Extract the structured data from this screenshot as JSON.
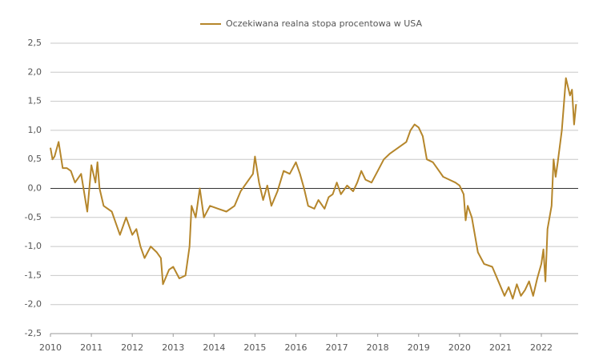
{
  "chart_data": {
    "type": "line",
    "x": [
      2010.0,
      2010.05,
      2010.1,
      2010.2,
      2010.3,
      2010.4,
      2010.5,
      2010.6,
      2010.75,
      2010.9,
      2011.0,
      2011.1,
      2011.15,
      2011.2,
      2011.3,
      2011.5,
      2011.6,
      2011.7,
      2011.85,
      2012.0,
      2012.1,
      2012.2,
      2012.3,
      2012.45,
      2012.6,
      2012.7,
      2012.75,
      2012.9,
      2013.0,
      2013.15,
      2013.3,
      2013.4,
      2013.45,
      2013.55,
      2013.65,
      2013.75,
      2013.9,
      2014.1,
      2014.3,
      2014.5,
      2014.65,
      2014.8,
      2014.95,
      2015.0,
      2015.1,
      2015.2,
      2015.3,
      2015.4,
      2015.55,
      2015.7,
      2015.85,
      2016.0,
      2016.1,
      2016.2,
      2016.3,
      2016.45,
      2016.55,
      2016.7,
      2016.8,
      2016.9,
      2017.0,
      2017.1,
      2017.25,
      2017.4,
      2017.5,
      2017.6,
      2017.7,
      2017.85,
      2018.0,
      2018.15,
      2018.3,
      2018.5,
      2018.7,
      2018.8,
      2018.9,
      2019.0,
      2019.1,
      2019.2,
      2019.35,
      2019.5,
      2019.6,
      2019.75,
      2019.9,
      2020.0,
      2020.1,
      2020.15,
      2020.2,
      2020.3,
      2020.45,
      2020.6,
      2020.8,
      2020.95,
      2021.1,
      2021.2,
      2021.3,
      2021.4,
      2021.5,
      2021.6,
      2021.7,
      2021.8,
      2021.9,
      2022.0,
      2022.05,
      2022.1,
      2022.15,
      2022.25,
      2022.3,
      2022.35,
      2022.4,
      2022.5,
      2022.6,
      2022.7,
      2022.75,
      2022.8,
      2022.85
    ],
    "series": [
      {
        "name": "Oczekiwana realna stopa procentowa w USA",
        "color": "#b5862b",
        "values": [
          0.7,
          0.5,
          0.55,
          0.8,
          0.35,
          0.35,
          0.3,
          0.1,
          0.25,
          -0.4,
          0.4,
          0.1,
          0.45,
          0.0,
          -0.3,
          -0.4,
          -0.6,
          -0.8,
          -0.5,
          -0.8,
          -0.7,
          -1.0,
          -1.2,
          -1.0,
          -1.1,
          -1.2,
          -1.65,
          -1.4,
          -1.35,
          -1.55,
          -1.5,
          -1.0,
          -0.3,
          -0.5,
          0.0,
          -0.5,
          -0.3,
          -0.35,
          -0.4,
          -0.3,
          -0.05,
          0.1,
          0.25,
          0.55,
          0.1,
          -0.2,
          0.05,
          -0.3,
          -0.05,
          0.3,
          0.25,
          0.45,
          0.25,
          0.0,
          -0.3,
          -0.35,
          -0.2,
          -0.35,
          -0.15,
          -0.1,
          0.1,
          -0.1,
          0.05,
          -0.05,
          0.1,
          0.3,
          0.15,
          0.1,
          0.3,
          0.5,
          0.6,
          0.7,
          0.8,
          1.0,
          1.1,
          1.05,
          0.9,
          0.5,
          0.45,
          0.3,
          0.2,
          0.15,
          0.1,
          0.05,
          -0.1,
          -0.55,
          -0.3,
          -0.5,
          -1.1,
          -1.3,
          -1.35,
          -1.6,
          -1.85,
          -1.7,
          -1.9,
          -1.65,
          -1.85,
          -1.75,
          -1.6,
          -1.85,
          -1.55,
          -1.3,
          -1.05,
          -1.6,
          -0.7,
          -0.3,
          0.5,
          0.2,
          0.45,
          1.0,
          1.9,
          1.6,
          1.7,
          1.1,
          1.45
        ]
      }
    ],
    "xlim": [
      2010,
      2022.9
    ],
    "xticks": [
      2010,
      2011,
      2012,
      2013,
      2014,
      2015,
      2016,
      2017,
      2018,
      2019,
      2020,
      2021,
      2022
    ],
    "ylim": [
      -2.5,
      2.5
    ],
    "yticks": [
      {
        "value": -2.5,
        "label": "-2,5"
      },
      {
        "value": -2.0,
        "label": "-2,0"
      },
      {
        "value": -1.5,
        "label": "-1,5"
      },
      {
        "value": -1.0,
        "label": "-1,0"
      },
      {
        "value": -0.5,
        "label": "-0,5"
      },
      {
        "value": 0,
        "label": "0,0"
      },
      {
        "value": 0.5,
        "label": "0,5"
      },
      {
        "value": 1.0,
        "label": "1,0"
      },
      {
        "value": 1.5,
        "label": "1,5"
      },
      {
        "value": 2.0,
        "label": "2,0"
      },
      {
        "value": 2.5,
        "label": "2,5"
      }
    ],
    "grid": true
  }
}
